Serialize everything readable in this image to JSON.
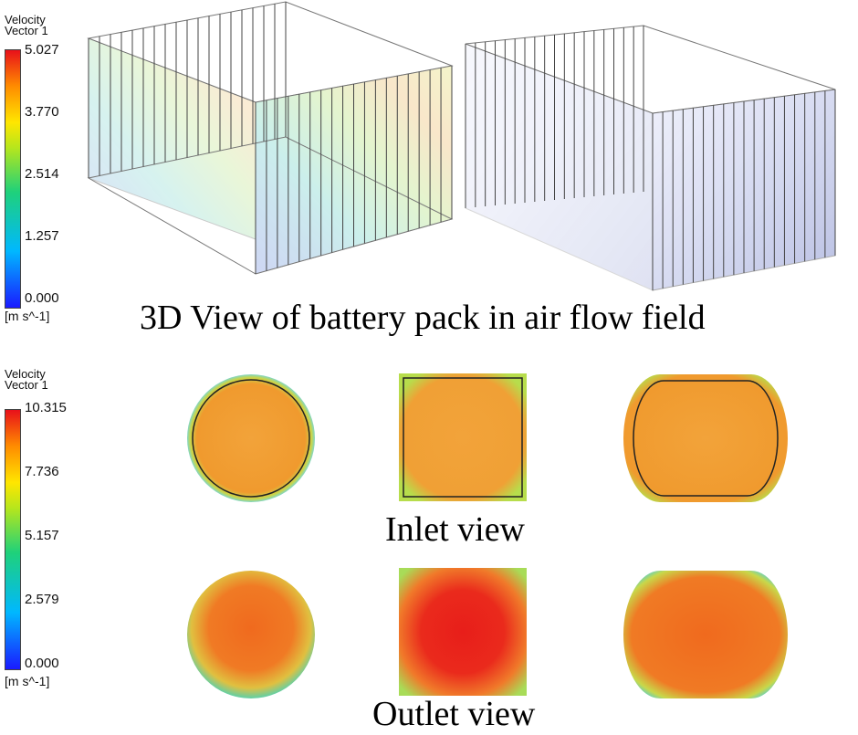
{
  "legend_top": {
    "title_line1": "Velocity",
    "title_line2": "Vector 1",
    "ticks": [
      "5.027",
      "3.770",
      "2.514",
      "1.257",
      "0.000"
    ],
    "unit": "[m s^-1]"
  },
  "legend_bottom": {
    "title_line1": "Velocity",
    "title_line2": "Vector 1",
    "ticks": [
      "10.315",
      "7.736",
      "5.157",
      "2.579",
      "0.000"
    ],
    "unit": "[m s^-1]"
  },
  "captions": {
    "view3d": "3D View of battery pack in air flow field",
    "inlet": "Inlet view",
    "outlet": "Outlet view"
  },
  "colors": {
    "scale_low": "#1a1aff",
    "scale_mid": "#1fd17a",
    "scale_high": "#e8101a",
    "wireframe": "#555555"
  }
}
